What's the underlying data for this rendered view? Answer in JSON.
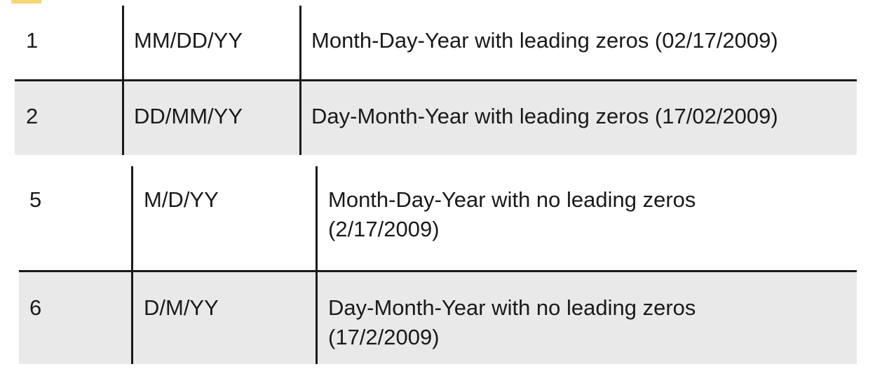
{
  "table_top": {
    "rows": [
      {
        "num": "1",
        "format": "MM/DD/YY",
        "description": "Month-Day-Year with leading zeros (02/17/2009)"
      },
      {
        "num": "2",
        "format": "DD/MM/YY",
        "description": "Day-Month-Year with leading zeros (17/02/2009)"
      }
    ]
  },
  "table_bottom": {
    "rows": [
      {
        "num": "5",
        "format": "M/D/YY",
        "description": "Month-Day-Year with no leading zeros (2/17/2009)"
      },
      {
        "num": "6",
        "format": "D/M/YY",
        "description": "Day-Month-Year with no leading zeros (17/2/2009)"
      }
    ]
  },
  "colors": {
    "shaded_row": "#e9e9e9",
    "rule": "#1a1a1a",
    "corner_mark": "#f7d774"
  }
}
